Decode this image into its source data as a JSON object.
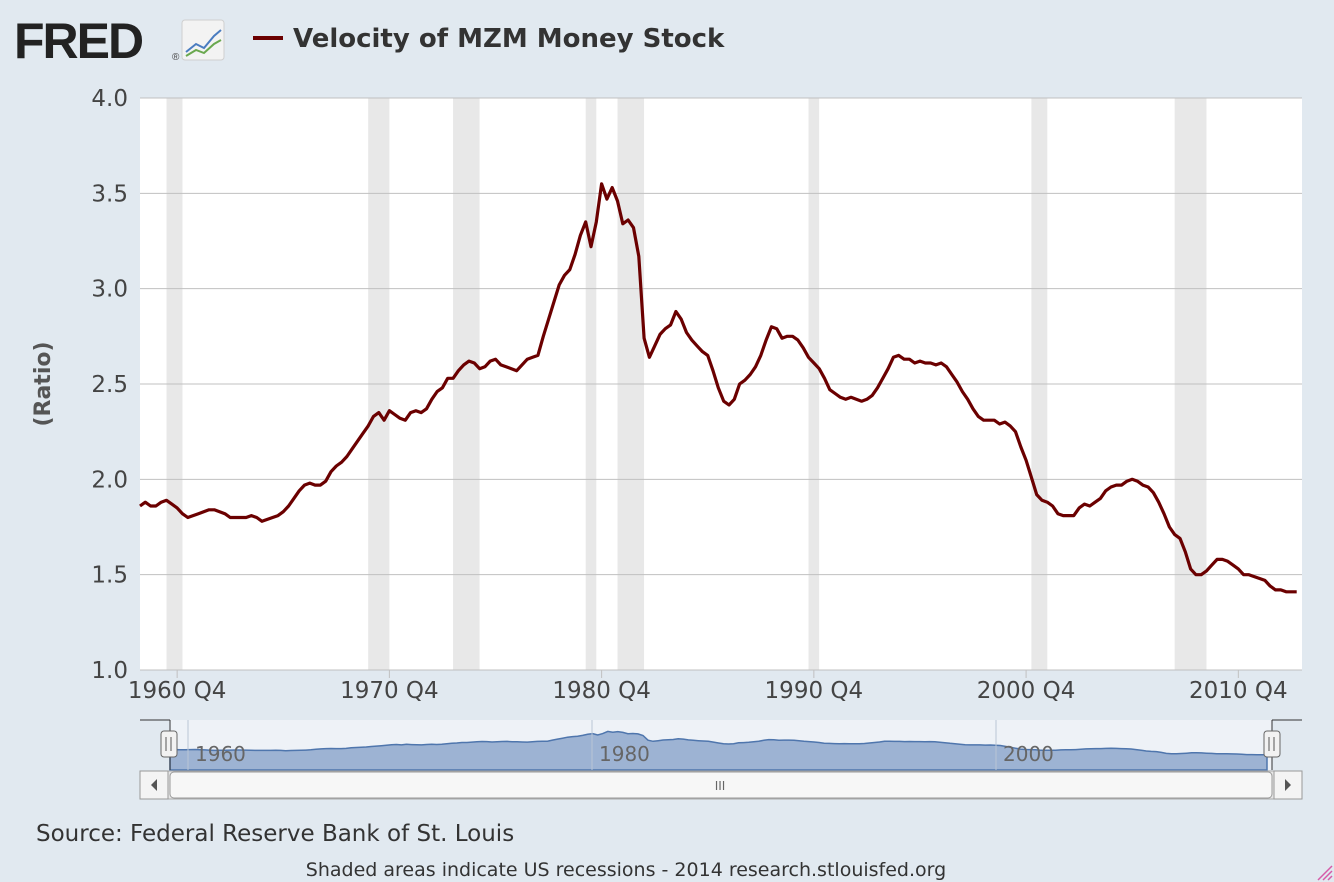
{
  "logo": {
    "text": "FRED",
    "registered": "®"
  },
  "title": "Velocity of MZM Money Stock",
  "colors": {
    "series": "#6b0000",
    "recession": "#e8e8e8",
    "grid": "#c0c0c0",
    "navigator_fill": "#9db3d3",
    "navigator_line": "#4f76ad",
    "background": "#e1e9f0"
  },
  "footer": {
    "source": "Source: Federal Reserve Bank of St. Louis",
    "note": "Shaded areas indicate US recessions - 2014 research.stlouisfed.org"
  },
  "navigator": {
    "labels": [
      {
        "text": "1960",
        "x": 1960.0
      },
      {
        "text": "1980",
        "x": 1980.0
      },
      {
        "text": "2000",
        "x": 2000.0
      }
    ],
    "scrollbar_grip": "III"
  },
  "chart_data": {
    "type": "line",
    "title": "Velocity of MZM Money Stock",
    "ylabel": "(Ratio)",
    "xlabel": "",
    "ylim": [
      1.0,
      4.0
    ],
    "xlim": [
      1959.0,
      2013.75
    ],
    "yticks": [
      1.0,
      1.5,
      2.0,
      2.5,
      3.0,
      3.5,
      4.0
    ],
    "ytick_labels": [
      "1.0",
      "1.5",
      "2.0",
      "2.5",
      "3.0",
      "3.5",
      "4.0"
    ],
    "xticks": [
      {
        "label": "1960 Q4",
        "x": 1960.75
      },
      {
        "label": "1970 Q4",
        "x": 1970.75
      },
      {
        "label": "1980 Q4",
        "x": 1980.75
      },
      {
        "label": "1990 Q4",
        "x": 1990.75
      },
      {
        "label": "2000 Q4",
        "x": 2000.75
      },
      {
        "label": "2010 Q4",
        "x": 2010.75
      }
    ],
    "grid": true,
    "legend": "top-left",
    "recessions": [
      [
        1960.25,
        1961.0
      ],
      [
        1969.75,
        1970.75
      ],
      [
        1973.75,
        1975.0
      ],
      [
        1980.0,
        1980.5
      ],
      [
        1981.5,
        1982.75
      ],
      [
        1990.5,
        1991.0
      ],
      [
        2001.0,
        2001.75
      ],
      [
        2007.75,
        2009.25
      ]
    ],
    "series": [
      {
        "name": "Velocity of MZM Money Stock",
        "points": [
          [
            1959.0,
            1.86
          ],
          [
            1959.25,
            1.88
          ],
          [
            1959.5,
            1.86
          ],
          [
            1959.75,
            1.86
          ],
          [
            1960.0,
            1.88
          ],
          [
            1960.25,
            1.89
          ],
          [
            1960.5,
            1.87
          ],
          [
            1960.75,
            1.85
          ],
          [
            1961.0,
            1.82
          ],
          [
            1961.25,
            1.8
          ],
          [
            1961.5,
            1.81
          ],
          [
            1961.75,
            1.82
          ],
          [
            1962.0,
            1.83
          ],
          [
            1962.25,
            1.84
          ],
          [
            1962.5,
            1.84
          ],
          [
            1962.75,
            1.83
          ],
          [
            1963.0,
            1.82
          ],
          [
            1963.25,
            1.8
          ],
          [
            1963.5,
            1.8
          ],
          [
            1963.75,
            1.8
          ],
          [
            1964.0,
            1.8
          ],
          [
            1964.25,
            1.81
          ],
          [
            1964.5,
            1.8
          ],
          [
            1964.75,
            1.78
          ],
          [
            1965.0,
            1.79
          ],
          [
            1965.25,
            1.8
          ],
          [
            1965.5,
            1.81
          ],
          [
            1965.75,
            1.83
          ],
          [
            1966.0,
            1.86
          ],
          [
            1966.25,
            1.9
          ],
          [
            1966.5,
            1.94
          ],
          [
            1966.75,
            1.97
          ],
          [
            1967.0,
            1.98
          ],
          [
            1967.25,
            1.97
          ],
          [
            1967.5,
            1.97
          ],
          [
            1967.75,
            1.99
          ],
          [
            1968.0,
            2.04
          ],
          [
            1968.25,
            2.07
          ],
          [
            1968.5,
            2.09
          ],
          [
            1968.75,
            2.12
          ],
          [
            1969.0,
            2.16
          ],
          [
            1969.25,
            2.2
          ],
          [
            1969.5,
            2.24
          ],
          [
            1969.75,
            2.28
          ],
          [
            1970.0,
            2.33
          ],
          [
            1970.25,
            2.35
          ],
          [
            1970.5,
            2.31
          ],
          [
            1970.75,
            2.36
          ],
          [
            1971.0,
            2.34
          ],
          [
            1971.25,
            2.32
          ],
          [
            1971.5,
            2.31
          ],
          [
            1971.75,
            2.35
          ],
          [
            1972.0,
            2.36
          ],
          [
            1972.25,
            2.35
          ],
          [
            1972.5,
            2.37
          ],
          [
            1972.75,
            2.42
          ],
          [
            1973.0,
            2.46
          ],
          [
            1973.25,
            2.48
          ],
          [
            1973.5,
            2.53
          ],
          [
            1973.75,
            2.53
          ],
          [
            1974.0,
            2.57
          ],
          [
            1974.25,
            2.6
          ],
          [
            1974.5,
            2.62
          ],
          [
            1974.75,
            2.61
          ],
          [
            1975.0,
            2.58
          ],
          [
            1975.25,
            2.59
          ],
          [
            1975.5,
            2.62
          ],
          [
            1975.75,
            2.63
          ],
          [
            1976.0,
            2.6
          ],
          [
            1976.25,
            2.59
          ],
          [
            1976.5,
            2.58
          ],
          [
            1976.75,
            2.57
          ],
          [
            1977.0,
            2.6
          ],
          [
            1977.25,
            2.63
          ],
          [
            1977.5,
            2.64
          ],
          [
            1977.75,
            2.65
          ],
          [
            1978.0,
            2.75
          ],
          [
            1978.25,
            2.84
          ],
          [
            1978.5,
            2.93
          ],
          [
            1978.75,
            3.02
          ],
          [
            1979.0,
            3.07
          ],
          [
            1979.25,
            3.1
          ],
          [
            1979.5,
            3.18
          ],
          [
            1979.75,
            3.28
          ],
          [
            1980.0,
            3.35
          ],
          [
            1980.25,
            3.22
          ],
          [
            1980.5,
            3.35
          ],
          [
            1980.75,
            3.55
          ],
          [
            1981.0,
            3.47
          ],
          [
            1981.25,
            3.53
          ],
          [
            1981.5,
            3.46
          ],
          [
            1981.75,
            3.34
          ],
          [
            1982.0,
            3.36
          ],
          [
            1982.25,
            3.32
          ],
          [
            1982.5,
            3.17
          ],
          [
            1982.75,
            2.74
          ],
          [
            1983.0,
            2.64
          ],
          [
            1983.25,
            2.7
          ],
          [
            1983.5,
            2.76
          ],
          [
            1983.75,
            2.79
          ],
          [
            1984.0,
            2.81
          ],
          [
            1984.25,
            2.88
          ],
          [
            1984.5,
            2.84
          ],
          [
            1984.75,
            2.77
          ],
          [
            1985.0,
            2.73
          ],
          [
            1985.25,
            2.7
          ],
          [
            1985.5,
            2.67
          ],
          [
            1985.75,
            2.65
          ],
          [
            1986.0,
            2.57
          ],
          [
            1986.25,
            2.48
          ],
          [
            1986.5,
            2.41
          ],
          [
            1986.75,
            2.39
          ],
          [
            1987.0,
            2.42
          ],
          [
            1987.25,
            2.5
          ],
          [
            1987.5,
            2.52
          ],
          [
            1987.75,
            2.55
          ],
          [
            1988.0,
            2.59
          ],
          [
            1988.25,
            2.65
          ],
          [
            1988.5,
            2.73
          ],
          [
            1988.75,
            2.8
          ],
          [
            1989.0,
            2.79
          ],
          [
            1989.25,
            2.74
          ],
          [
            1989.5,
            2.75
          ],
          [
            1989.75,
            2.75
          ],
          [
            1990.0,
            2.73
          ],
          [
            1990.25,
            2.69
          ],
          [
            1990.5,
            2.64
          ],
          [
            1990.75,
            2.61
          ],
          [
            1991.0,
            2.58
          ],
          [
            1991.25,
            2.53
          ],
          [
            1991.5,
            2.47
          ],
          [
            1991.75,
            2.45
          ],
          [
            1992.0,
            2.43
          ],
          [
            1992.25,
            2.42
          ],
          [
            1992.5,
            2.43
          ],
          [
            1992.75,
            2.42
          ],
          [
            1993.0,
            2.41
          ],
          [
            1993.25,
            2.42
          ],
          [
            1993.5,
            2.44
          ],
          [
            1993.75,
            2.48
          ],
          [
            1994.0,
            2.53
          ],
          [
            1994.25,
            2.58
          ],
          [
            1994.5,
            2.64
          ],
          [
            1994.75,
            2.65
          ],
          [
            1995.0,
            2.63
          ],
          [
            1995.25,
            2.63
          ],
          [
            1995.5,
            2.61
          ],
          [
            1995.75,
            2.62
          ],
          [
            1996.0,
            2.61
          ],
          [
            1996.25,
            2.61
          ],
          [
            1996.5,
            2.6
          ],
          [
            1996.75,
            2.61
          ],
          [
            1997.0,
            2.59
          ],
          [
            1997.25,
            2.55
          ],
          [
            1997.5,
            2.51
          ],
          [
            1997.75,
            2.46
          ],
          [
            1998.0,
            2.42
          ],
          [
            1998.25,
            2.37
          ],
          [
            1998.5,
            2.33
          ],
          [
            1998.75,
            2.31
          ],
          [
            1999.0,
            2.31
          ],
          [
            1999.25,
            2.31
          ],
          [
            1999.5,
            2.29
          ],
          [
            1999.75,
            2.3
          ],
          [
            2000.0,
            2.28
          ],
          [
            2000.25,
            2.25
          ],
          [
            2000.5,
            2.17
          ],
          [
            2000.75,
            2.1
          ],
          [
            2001.0,
            2.01
          ],
          [
            2001.25,
            1.92
          ],
          [
            2001.5,
            1.89
          ],
          [
            2001.75,
            1.88
          ],
          [
            2002.0,
            1.86
          ],
          [
            2002.25,
            1.82
          ],
          [
            2002.5,
            1.81
          ],
          [
            2002.75,
            1.81
          ],
          [
            2003.0,
            1.81
          ],
          [
            2003.25,
            1.85
          ],
          [
            2003.5,
            1.87
          ],
          [
            2003.75,
            1.86
          ],
          [
            2004.0,
            1.88
          ],
          [
            2004.25,
            1.9
          ],
          [
            2004.5,
            1.94
          ],
          [
            2004.75,
            1.96
          ],
          [
            2005.0,
            1.97
          ],
          [
            2005.25,
            1.97
          ],
          [
            2005.5,
            1.99
          ],
          [
            2005.75,
            2.0
          ],
          [
            2006.0,
            1.99
          ],
          [
            2006.25,
            1.97
          ],
          [
            2006.5,
            1.96
          ],
          [
            2006.75,
            1.93
          ],
          [
            2007.0,
            1.88
          ],
          [
            2007.25,
            1.82
          ],
          [
            2007.5,
            1.75
          ],
          [
            2007.75,
            1.71
          ],
          [
            2008.0,
            1.69
          ],
          [
            2008.25,
            1.62
          ],
          [
            2008.5,
            1.53
          ],
          [
            2008.75,
            1.5
          ],
          [
            2009.0,
            1.5
          ],
          [
            2009.25,
            1.52
          ],
          [
            2009.5,
            1.55
          ],
          [
            2009.75,
            1.58
          ],
          [
            2010.0,
            1.58
          ],
          [
            2010.25,
            1.57
          ],
          [
            2010.5,
            1.55
          ],
          [
            2010.75,
            1.53
          ],
          [
            2011.0,
            1.5
          ],
          [
            2011.25,
            1.5
          ],
          [
            2011.5,
            1.49
          ],
          [
            2011.75,
            1.48
          ],
          [
            2012.0,
            1.47
          ],
          [
            2012.25,
            1.44
          ],
          [
            2012.5,
            1.42
          ],
          [
            2012.75,
            1.42
          ],
          [
            2013.0,
            1.41
          ],
          [
            2013.25,
            1.41
          ],
          [
            2013.5,
            1.41
          ]
        ]
      }
    ]
  }
}
